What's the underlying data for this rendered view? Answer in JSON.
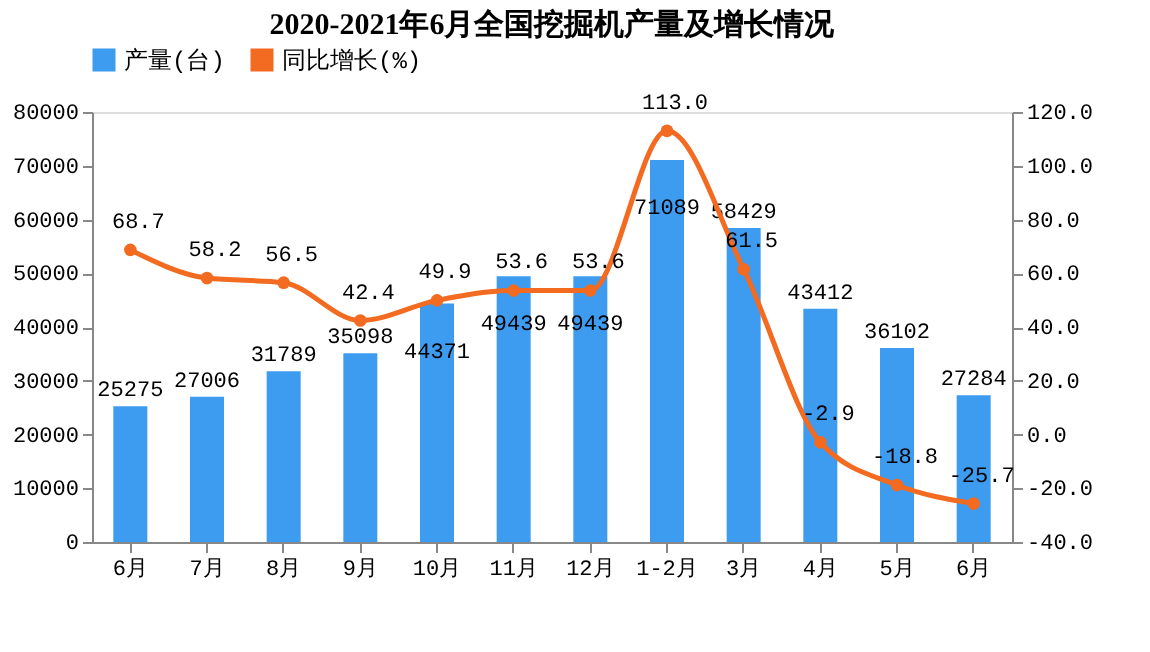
{
  "chart_data": {
    "type": "bar",
    "title": "2020-2021年6月全国挖掘机产量及增长情况",
    "categories": [
      "6月",
      "7月",
      "8月",
      "9月",
      "10月",
      "11月",
      "12月",
      "1-2月",
      "3月",
      "4月",
      "5月",
      "6月"
    ],
    "series": [
      {
        "name": "产量(台)",
        "color": "#3d9bf0",
        "values": [
          25275,
          27006,
          31789,
          35098,
          44371,
          49439,
          49439,
          71089,
          58429,
          43412,
          36102,
          27284
        ],
        "value_labels": [
          "25275",
          "27006",
          "31789",
          "35098",
          "44371",
          "49439",
          "49439",
          "71089",
          "58429",
          "43412",
          "36102",
          "27284"
        ]
      },
      {
        "name": "同比增长(%)",
        "type": "line",
        "axis": "y2",
        "color": "#f26b21",
        "values": [
          68.7,
          58.2,
          56.5,
          42.4,
          49.9,
          53.6,
          53.6,
          113.0,
          61.5,
          -2.9,
          -18.8,
          -25.7
        ],
        "value_labels": [
          "68.7",
          "58.2",
          "56.5",
          "42.4",
          "49.9",
          "53.6",
          "53.6",
          "113.0",
          "61.5",
          "-2.9",
          "-18.8",
          "-25.7"
        ]
      }
    ],
    "ylim": [
      0,
      80000
    ],
    "yticks": [
      0,
      10000,
      20000,
      30000,
      40000,
      50000,
      60000,
      70000,
      80000
    ],
    "y2lim": [
      -40,
      120
    ],
    "y2ticks": [
      {
        "value": -40,
        "label": "-40.0"
      },
      {
        "value": -20,
        "label": "-20.0"
      },
      {
        "value": 0,
        "label": "0.0"
      },
      {
        "value": 20,
        "label": "20.0"
      },
      {
        "value": 40,
        "label": "40.0"
      },
      {
        "value": 60,
        "label": "60.0"
      },
      {
        "value": 80,
        "label": "80.0"
      },
      {
        "value": 100,
        "label": "100.0"
      },
      {
        "value": 120,
        "label": "120.0"
      }
    ],
    "grid": false,
    "legend": "top",
    "marker": "circle",
    "line_style": "solid"
  }
}
